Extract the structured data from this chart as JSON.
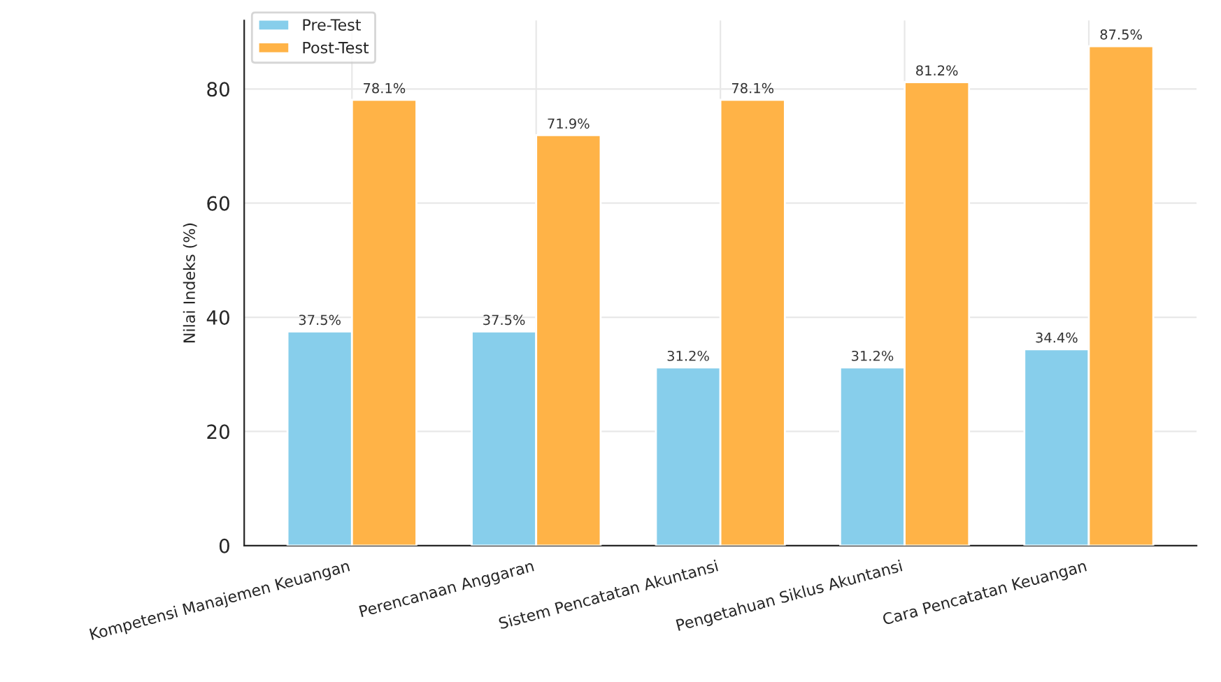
{
  "chart_data": {
    "type": "bar",
    "ylabel": "Nilai Indeks (%)",
    "categories": [
      "Kompetensi Manajemen Keuangan",
      "Perencanaan Anggaran",
      "Sistem Pencatatan Akuntansi",
      "Pengetahuan Siklus Akuntansi",
      "Cara Pencatatan Keuangan"
    ],
    "series": [
      {
        "name": "Pre-Test",
        "color": "#87ceeb",
        "values": [
          37.5,
          37.5,
          31.2,
          31.2,
          34.4
        ],
        "value_labels": [
          "37.5%",
          "37.5%",
          "31.2%",
          "31.2%",
          "34.4%"
        ]
      },
      {
        "name": "Post-Test",
        "color": "#ffb347",
        "values": [
          78.1,
          71.9,
          78.1,
          81.2,
          87.5
        ],
        "value_labels": [
          "78.1%",
          "71.9%",
          "78.1%",
          "81.2%",
          "87.5%"
        ]
      }
    ],
    "ylim": [
      0,
      92
    ],
    "yticks": [
      0,
      20,
      40,
      60,
      80
    ],
    "grid": true,
    "legend": "top left"
  }
}
